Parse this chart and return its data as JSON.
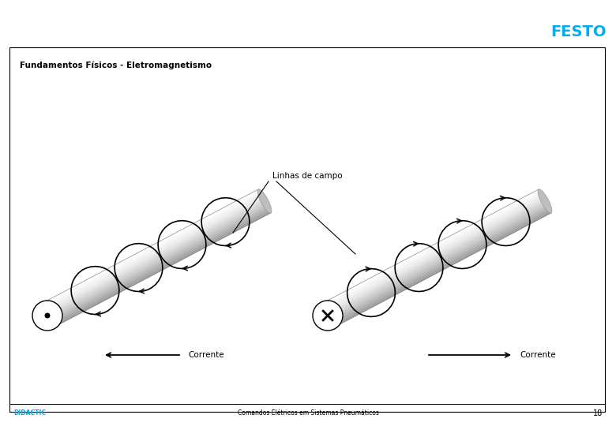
{
  "title": "Fundamentos Físicos - Eletromagnetismo",
  "subtitle_bottom": "Comandos Elétricos em Sistemas Pneumáticos",
  "brand": "FESTO",
  "brand_color": "#00AEEF",
  "didactic_label": "DIDACTIC",
  "didactic_color": "#00AEEF",
  "page_number": "18",
  "label_linhas": "Linhas de campo",
  "label_corrente": "Corrente",
  "bg_color": "#FFFFFF",
  "border_color": "#000000",
  "text_color": "#000000",
  "cyl_fill": "#C8C8C8",
  "cyl_highlight": "#E8E8E8",
  "cyl_shadow": "#888888"
}
